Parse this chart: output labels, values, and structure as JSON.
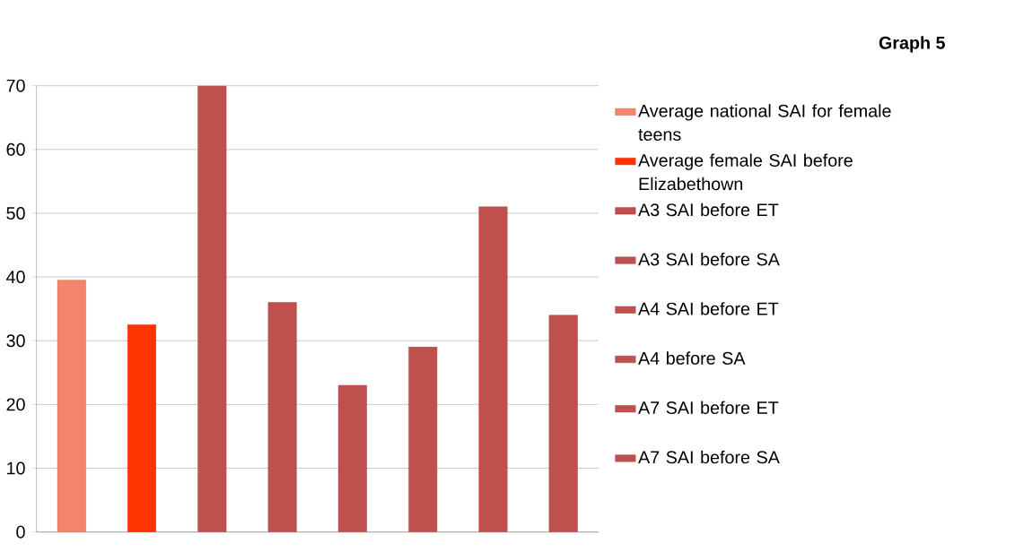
{
  "chart_data": {
    "type": "bar",
    "title": "Graph 5",
    "categories": [
      null,
      null,
      null,
      null,
      null,
      null,
      null,
      null
    ],
    "series": [
      {
        "name": "Average national SAI for female teens",
        "color": "#f4856a",
        "values": [
          39.5,
          null,
          null,
          null,
          null,
          null,
          null,
          null
        ]
      },
      {
        "name": "Average female SAI before Elizabethown",
        "color": "#ff3300",
        "values": [
          null,
          32.5,
          null,
          null,
          null,
          null,
          null,
          null
        ]
      },
      {
        "name": "A3 SAI before ET",
        "color": "#c0504d",
        "values": [
          null,
          null,
          70,
          null,
          null,
          null,
          null,
          null
        ]
      },
      {
        "name": "A3 SAI before SA",
        "color": "#c0504d",
        "values": [
          null,
          null,
          null,
          36,
          null,
          null,
          null,
          null
        ]
      },
      {
        "name": "A4 SAI before ET",
        "color": "#c0504d",
        "values": [
          null,
          null,
          null,
          null,
          23,
          null,
          null,
          null
        ]
      },
      {
        "name": "A4 before SA",
        "color": "#c0504d",
        "values": [
          null,
          null,
          null,
          null,
          null,
          29,
          null,
          null
        ]
      },
      {
        "name": "A7 SAI before ET",
        "color": "#c0504d",
        "values": [
          null,
          null,
          null,
          null,
          null,
          null,
          51,
          null
        ]
      },
      {
        "name": "A7 SAI before SA",
        "color": "#c0504d",
        "values": [
          null,
          null,
          null,
          null,
          null,
          null,
          null,
          34
        ]
      }
    ],
    "ylim": [
      0,
      70
    ],
    "yticks": [
      0,
      10,
      20,
      30,
      40,
      50,
      60,
      70
    ],
    "grid": "y",
    "legend": "right"
  }
}
